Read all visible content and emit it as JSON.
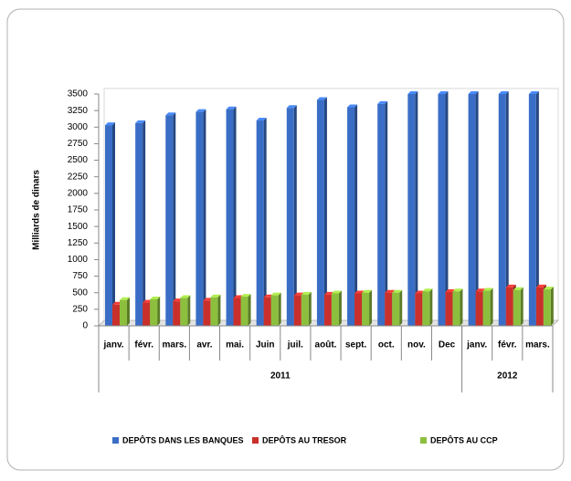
{
  "chart_data": {
    "type": "bar",
    "y_label": "Milliards de dinars",
    "categories": [
      "janv.",
      "févr.",
      "mars.",
      "avr.",
      "mai.",
      "Juin",
      "juil.",
      "août.",
      "sept.",
      "oct.",
      "nov.",
      "Dec",
      "janv.",
      "févr.",
      "mars."
    ],
    "category_groups": [
      {
        "name": "2011",
        "count": 12
      },
      {
        "name": "2012",
        "count": 3
      }
    ],
    "series": [
      {
        "name": "DEPÔTS DANS LES BANQUES",
        "color": "#3a6ec6",
        "values": [
          3030,
          3060,
          3180,
          3230,
          3270,
          3100,
          3290,
          3410,
          3300,
          3350,
          3500,
          3500,
          3500,
          3500,
          3500
        ]
      },
      {
        "name": "DEPÔTS AU TRESOR",
        "color": "#c9302c",
        "values": [
          320,
          350,
          370,
          380,
          420,
          430,
          460,
          470,
          490,
          500,
          490,
          510,
          520,
          580,
          580
        ]
      },
      {
        "name": "DEPÔTS AU CCP",
        "color": "#8dbf3e",
        "values": [
          390,
          400,
          420,
          430,
          440,
          460,
          470,
          490,
          500,
          500,
          520,
          520,
          530,
          540,
          550
        ]
      }
    ],
    "ylim": [
      0,
      3500
    ],
    "yticks": [
      0,
      250,
      500,
      750,
      1000,
      1250,
      1500,
      1750,
      2000,
      2250,
      2500,
      2750,
      3000,
      3250,
      3500
    ],
    "grid": false,
    "legend": "bottom"
  }
}
